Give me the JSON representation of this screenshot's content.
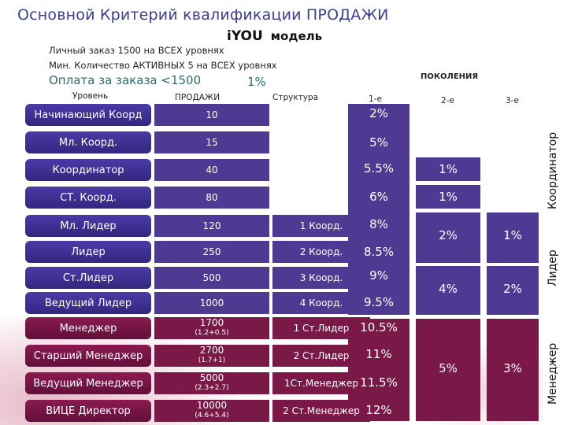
{
  "header": {
    "title": "Основной Критерий квалификации ПРОДАЖИ",
    "brand_i": "i",
    "brand_you": "YOU",
    "brand_model": "модель"
  },
  "rules": {
    "line1": "Личный заказ 1500 на ВСЕХ уровнях",
    "line2": "Мин. Количество АКТИВНЫХ 5 на ВСЕХ уровнях",
    "line3": "Оплата за заказа <1500",
    "line3_pct": "1%"
  },
  "columns": {
    "level": "Уровень",
    "sales": "ПРОДАЖИ",
    "structure": "Структура",
    "generations": "ПОКОЛЕНИЯ",
    "gen1": "1-е",
    "gen2": "2-е",
    "gen3": "3-е"
  },
  "rows": [
    {
      "level": "Начинающий Коорд",
      "sales": "10",
      "sales_sub": "",
      "structure": "",
      "gen1": "2%"
    },
    {
      "level": "Мл. Коорд.",
      "sales": "15",
      "sales_sub": "",
      "structure": "",
      "gen1": "5%"
    },
    {
      "level": "Координатор",
      "sales": "40",
      "sales_sub": "",
      "structure": "",
      "gen1": "5.5%"
    },
    {
      "level": "СТ. Коорд.",
      "sales": "80",
      "sales_sub": "",
      "structure": "",
      "gen1": "6%"
    },
    {
      "level": "Мл. Лидер",
      "sales": "120",
      "sales_sub": "",
      "structure": "1 Коорд.",
      "gen1": "8%"
    },
    {
      "level": "Лидер",
      "sales": "250",
      "sales_sub": "",
      "structure": "2 Коорд.",
      "gen1": "8.5%"
    },
    {
      "level": "Ст.Лидер",
      "sales": "500",
      "sales_sub": "",
      "structure": "3 Коорд.",
      "gen1": "9%"
    },
    {
      "level": "Ведущий Лидер",
      "sales": "1000",
      "sales_sub": "",
      "structure": "4 Коорд.",
      "gen1": "9.5%"
    },
    {
      "level": "Менеджер",
      "sales": "1700",
      "sales_sub": "(1.2+0.5)",
      "structure": "1 Ст.Лидер",
      "gen1": "10.5%"
    },
    {
      "level": "Старший Менеджер",
      "sales": "2700",
      "sales_sub": "(1.7+1)",
      "structure": "2 Ст.Лидер",
      "gen1": "11%"
    },
    {
      "level": "Ведущий Менеджер",
      "sales": "5000",
      "sales_sub": "(2.3+2.7)",
      "structure": "1Ст.Менеджер",
      "gen1": "11.5%"
    },
    {
      "level": "ВИЦЕ Директор",
      "sales": "10000",
      "sales_sub": "(4.6+5.4)",
      "structure": "2 Ст.Менеджер",
      "gen1": "12%"
    }
  ],
  "gen2": {
    "coord": "1%",
    "coord2": "1%",
    "leader": "2%",
    "leader2": "4%",
    "manager": "5%"
  },
  "gen3": {
    "leader": "1%",
    "leader2": "2%",
    "manager": "3%"
  },
  "side_labels": {
    "coordinator": "Координатор",
    "leader": "Лидер",
    "manager": "Менеджер"
  },
  "colors": {
    "purple": "#4f3a93",
    "burgundy": "#7a1848",
    "title": "#3a3f8f"
  }
}
